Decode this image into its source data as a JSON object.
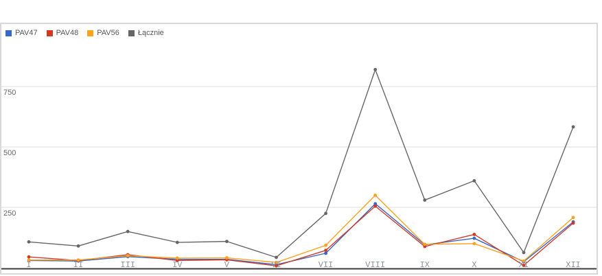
{
  "theme": {
    "background": "#ffffff",
    "panel_border": "#d8d8d8",
    "gridline_color": "#dcdcdc",
    "axis_line_color": "#3b3b3b",
    "ytick_color": "#666666",
    "xtick_color": "#8a92a2",
    "legend_text_color": "#555555"
  },
  "chart_data": {
    "type": "line",
    "title": "",
    "xlabel": "",
    "ylabel": "",
    "x": [
      "I",
      "II",
      "III",
      "IV",
      "V",
      "VI",
      "VII",
      "VIII",
      "IX",
      "X",
      "XI",
      "XII"
    ],
    "yticks": [
      250,
      500,
      750
    ],
    "ylim": [
      0,
      1000
    ],
    "grid": true,
    "legend_position": "top-left",
    "markers": true,
    "series": [
      {
        "name": "PAV47",
        "color": "#3667c9",
        "values": [
          30,
          28,
          46,
          35,
          35,
          13,
          60,
          265,
          95,
          122,
          25,
          190
        ]
      },
      {
        "name": "PAV48",
        "color": "#d03a24",
        "values": [
          45,
          30,
          54,
          30,
          33,
          8,
          72,
          255,
          88,
          138,
          10,
          185
        ]
      },
      {
        "name": "PAV56",
        "color": "#ffa01e",
        "values": [
          32,
          32,
          50,
          40,
          41,
          22,
          93,
          300,
          97,
          100,
          28,
          208
        ]
      },
      {
        "name": "Łącznie",
        "color": "#666666",
        "values": [
          107,
          90,
          150,
          105,
          109,
          43,
          225,
          820,
          280,
          360,
          63,
          583
        ]
      }
    ]
  }
}
